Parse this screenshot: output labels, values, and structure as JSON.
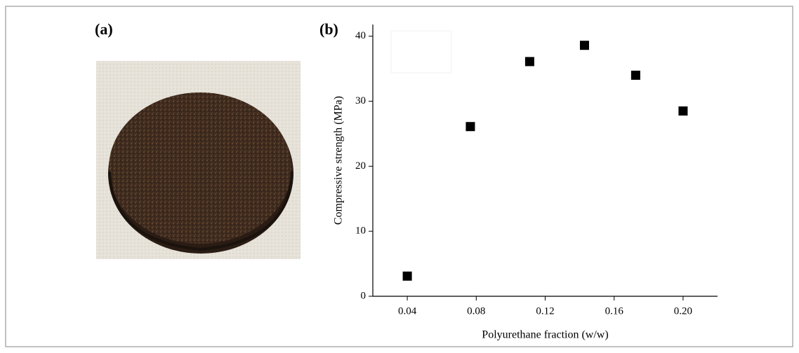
{
  "figure": {
    "panel_a_label": "(a)"
  },
  "chart_data": {
    "type": "scatter",
    "panel_label": "(b)",
    "x_label": "Polyurethane fraction (w/w)",
    "y_label": "Compressive strength (MPa)",
    "x": [
      0.04,
      0.0766,
      0.111,
      0.1428,
      0.1725,
      0.2
    ],
    "values": [
      3.1,
      26.1,
      36.1,
      38.6,
      34.0,
      28.5
    ],
    "color": "#000000",
    "marker": "square",
    "xlim": [
      0.02,
      0.22
    ],
    "ylim": [
      0,
      41.8
    ],
    "xticks": [
      0.04,
      0.08,
      0.12,
      0.16,
      {
        "value": 0.2,
        "label": "0.20"
      }
    ],
    "yticks": [
      0,
      10,
      20,
      30,
      40
    ],
    "grid": false
  }
}
